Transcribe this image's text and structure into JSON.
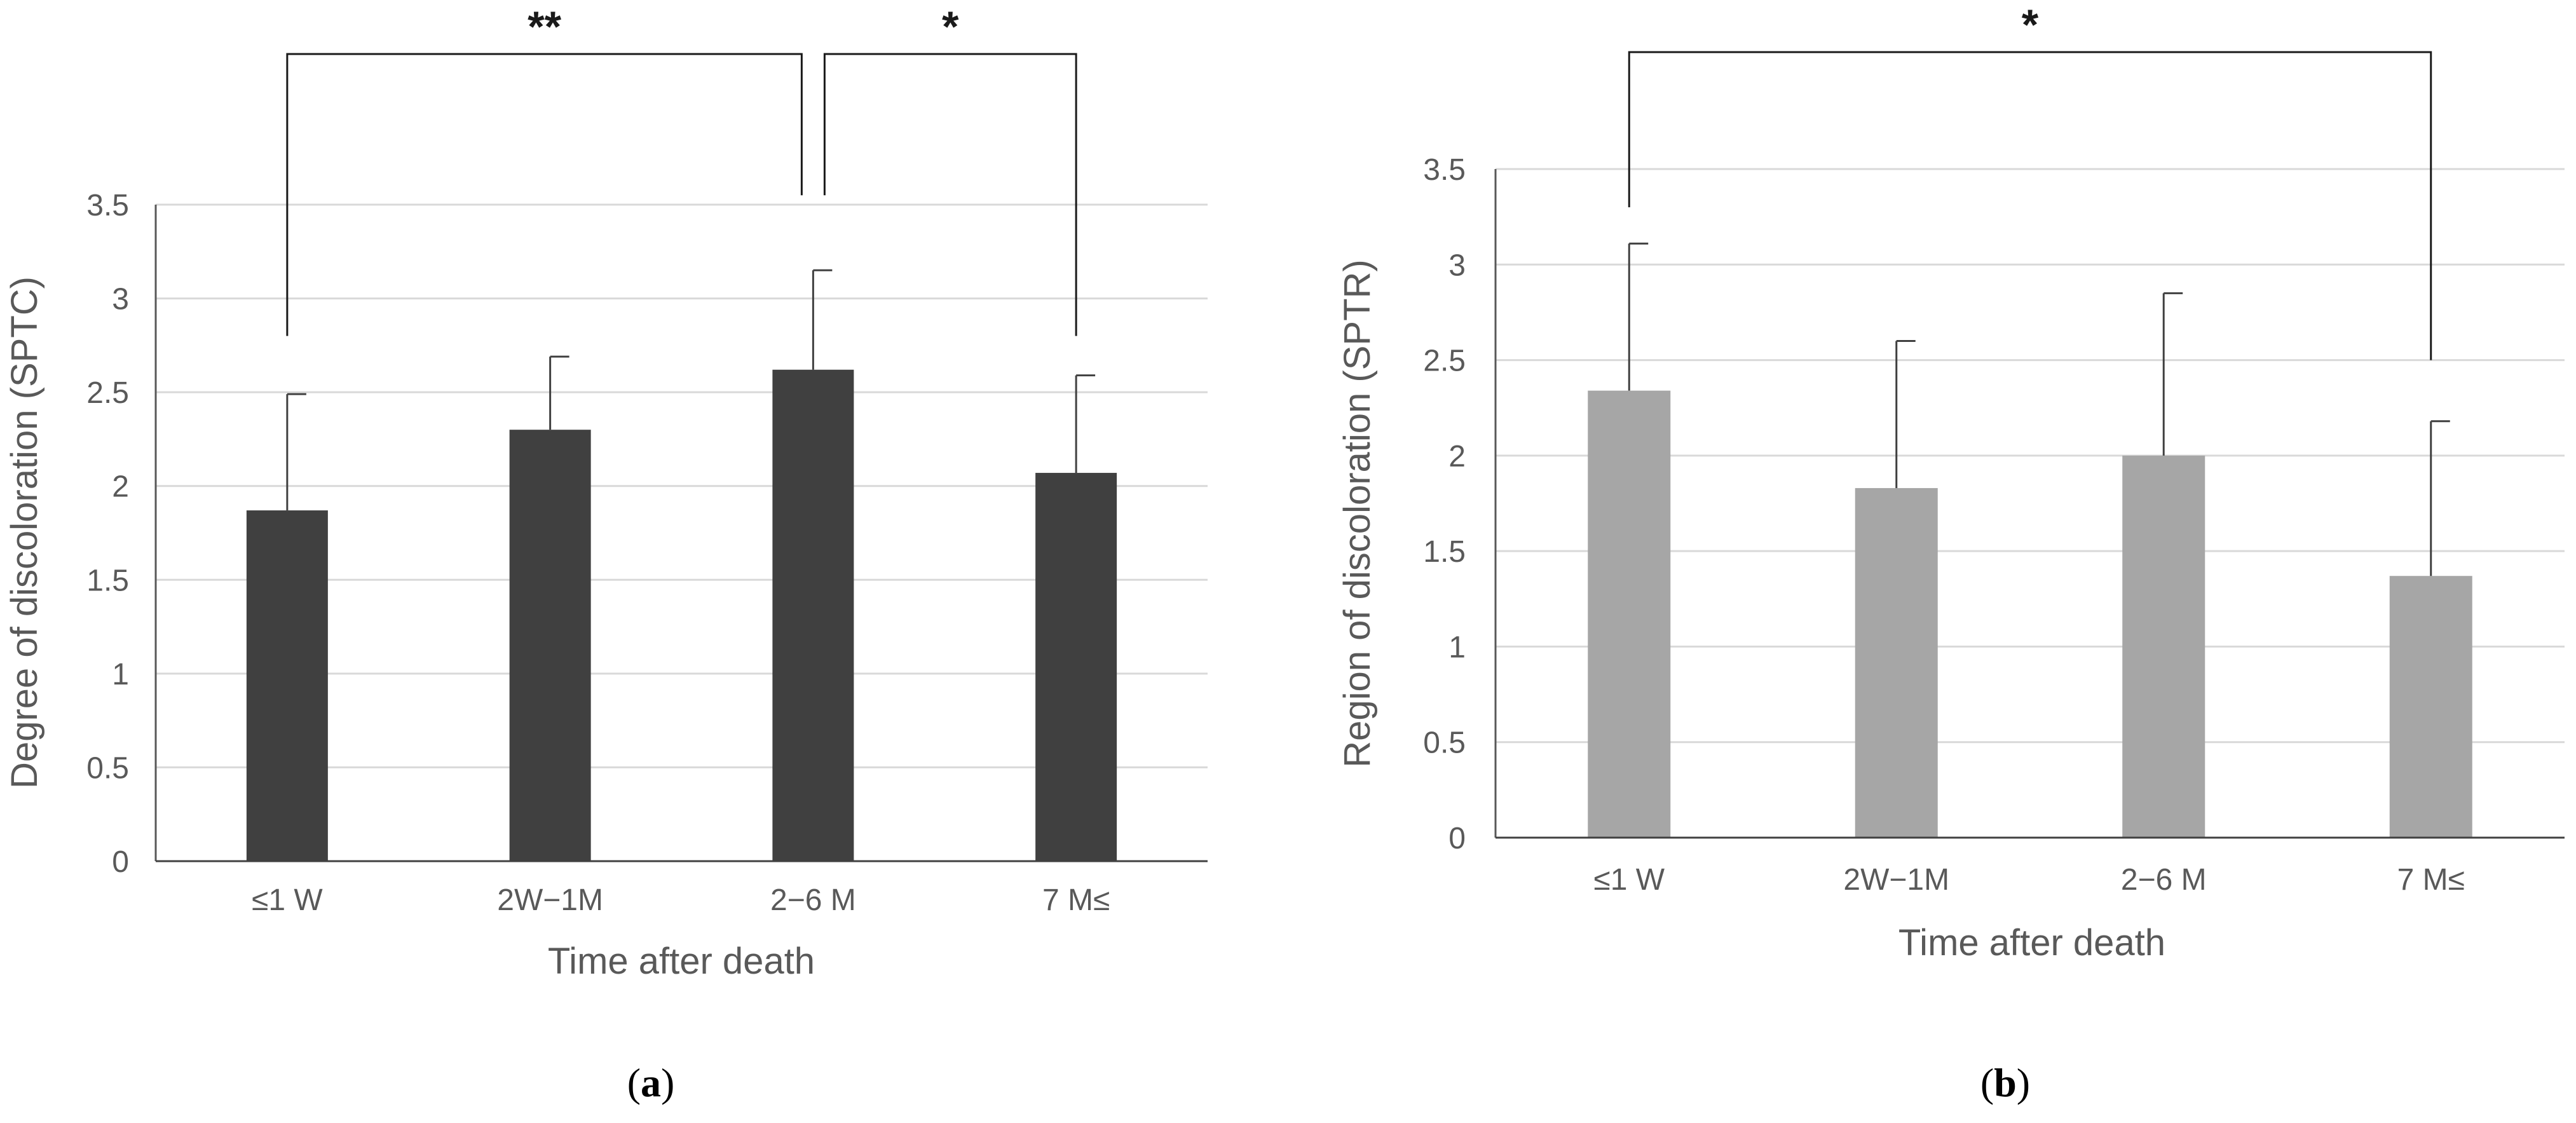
{
  "chart_data": [
    {
      "type": "bar",
      "panel_label": "(a)",
      "panel_letter": "a",
      "title": "",
      "categories": [
        "≤1 W",
        "2W−1M",
        "2−6 M",
        "7 M≤"
      ],
      "values": [
        1.87,
        2.3,
        2.62,
        2.07
      ],
      "error_upper": [
        0.62,
        0.39,
        0.53,
        0.52
      ],
      "bar_color": "#404040",
      "xlabel": "Time after death",
      "ylabel": "Degree of discoloration (SPTC)",
      "ylim": [
        0,
        3.5
      ],
      "yticks": [
        0,
        0.5,
        1,
        1.5,
        2,
        2.5,
        3,
        3.5
      ],
      "ytick_labels": [
        "0",
        "0.5",
        "1",
        "1.5",
        "2",
        "2.5",
        "3",
        "3.5"
      ],
      "grid": true,
      "significance": [
        {
          "from": 0,
          "to": 2,
          "label": "**",
          "start_y": [
            2.8,
            3.55
          ],
          "level": 0
        },
        {
          "from": 2,
          "to": 3,
          "label": "*",
          "start_y": [
            3.55,
            2.8
          ],
          "level": 0
        }
      ]
    },
    {
      "type": "bar",
      "panel_label": "(b)",
      "panel_letter": "b",
      "title": "",
      "categories": [
        "≤1 W",
        "2W−1M",
        "2−6 M",
        "7 M≤"
      ],
      "values": [
        2.34,
        1.83,
        2.0,
        1.37
      ],
      "error_upper": [
        0.77,
        0.77,
        0.85,
        0.81
      ],
      "bar_color": "#a6a6a6",
      "xlabel": "Time after death",
      "ylabel": "Region of discoloration (SPTR)",
      "ylim": [
        0,
        3.5
      ],
      "yticks": [
        0,
        0.5,
        1,
        1.5,
        2,
        2.5,
        3,
        3.5
      ],
      "ytick_labels": [
        "0",
        "0.5",
        "1",
        "1.5",
        "2",
        "2.5",
        "3",
        "3.5"
      ],
      "grid": true,
      "significance": [
        {
          "from": 0,
          "to": 3,
          "label": "*",
          "start_y": [
            3.3,
            2.5
          ],
          "level": 0
        }
      ]
    }
  ]
}
